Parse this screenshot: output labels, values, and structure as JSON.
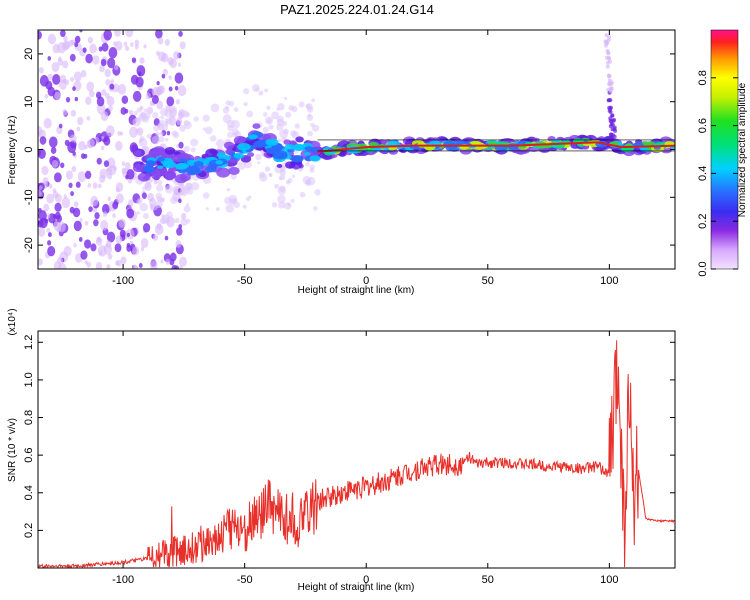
{
  "title": "PAZ1.2025.224.01.24.G14",
  "colors": {
    "snr_line": "#e8302a",
    "ridge": "#e01b1b"
  },
  "chart_data": [
    {
      "type": "heatmap",
      "xlabel": "Height of straight line (km)",
      "ylabel": "Frequency (Hz)",
      "xlim": [
        -135,
        127
      ],
      "ylim": [
        -25,
        25
      ],
      "xticks": [
        -100,
        -50,
        0,
        50,
        100
      ],
      "yticks": [
        -20,
        -10,
        0,
        10,
        20
      ],
      "colorbar": {
        "label": "Normalized spectral amplitude",
        "range": [
          0,
          1
        ],
        "ticks": [
          0.0,
          0.2,
          0.4,
          0.6,
          0.8
        ],
        "tick_labels": [
          "0.0",
          "0.2",
          "0.4",
          "0.6",
          "0.8"
        ]
      },
      "ridge": [
        {
          "x": -90,
          "y": -3
        },
        {
          "x": -70,
          "y": -3.5
        },
        {
          "x": -55,
          "y": -2
        },
        {
          "x": -45,
          "y": 2
        },
        {
          "x": -35,
          "y": -1
        },
        {
          "x": -20,
          "y": -0.5
        },
        {
          "x": 0,
          "y": 0.5
        },
        {
          "x": 20,
          "y": 0.8
        },
        {
          "x": 60,
          "y": 0.8
        },
        {
          "x": 95,
          "y": 1.5
        },
        {
          "x": 105,
          "y": 0.5
        },
        {
          "x": 127,
          "y": 0.8
        }
      ]
    },
    {
      "type": "line",
      "xlabel": "Height of straight line (km)",
      "ylabel": "SNR (10 * v/v)",
      "scale_label": "(x10⁴)",
      "xlim": [
        -135,
        127
      ],
      "ylim": [
        0,
        1.26
      ],
      "xticks": [
        -100,
        -50,
        0,
        50,
        100
      ],
      "yticks": [
        0.2,
        0.4,
        0.6,
        0.8,
        1.0,
        1.2
      ],
      "ytick_labels": [
        "0.2",
        "0.4",
        "0.6",
        "0.8",
        "1.0",
        "1.2"
      ],
      "series": [
        {
          "x": [
            -135,
            -120,
            -110,
            -100,
            -90,
            -80,
            -70,
            -60,
            -55,
            -50,
            -45,
            -40,
            -38,
            -35,
            -30,
            -28,
            -25,
            -22,
            -20,
            -15,
            -10,
            -5,
            0,
            5,
            10,
            15,
            20,
            25,
            30,
            35,
            40,
            42,
            45,
            50,
            55,
            60,
            65,
            70,
            75,
            80,
            85,
            90,
            95,
            100,
            102,
            104,
            106,
            108,
            110,
            112,
            115,
            120,
            127
          ],
          "y": [
            0.01,
            0.01,
            0.02,
            0.03,
            0.05,
            0.08,
            0.12,
            0.17,
            0.22,
            0.2,
            0.28,
            0.32,
            0.3,
            0.28,
            0.25,
            0.2,
            0.3,
            0.32,
            0.35,
            0.38,
            0.4,
            0.42,
            0.43,
            0.45,
            0.47,
            0.5,
            0.52,
            0.54,
            0.55,
            0.55,
            0.55,
            0.6,
            0.55,
            0.56,
            0.56,
            0.56,
            0.55,
            0.55,
            0.54,
            0.54,
            0.53,
            0.53,
            0.54,
            0.5,
            0.85,
            1.1,
            0.2,
            0.9,
            0.4,
            0.52,
            0.26,
            0.25,
            0.25
          ]
        }
      ]
    }
  ]
}
